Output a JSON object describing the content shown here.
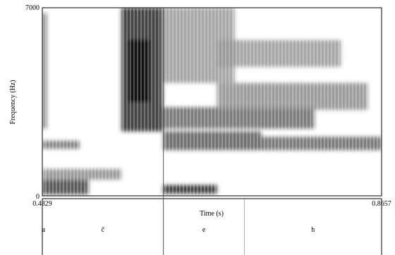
{
  "chart_data": {
    "type": "heatmap",
    "title": "",
    "xlabel": "Time (s)",
    "ylabel": "Frequency (Hz)",
    "x_range": [
      0.4829,
      0.8657
    ],
    "y_range": [
      0,
      7000
    ],
    "x_tick_labels": [
      "0.4829",
      "0.8657"
    ],
    "y_tick_labels": [
      "0",
      "7000"
    ],
    "cursor_time_s": 0.6195,
    "grid": false,
    "colormap": "grayscale (dark = high energy)",
    "energy_regions": [
      {
        "t0": 0.4829,
        "t1": 0.535,
        "f0": 50,
        "f1": 600,
        "level": 0.75
      },
      {
        "t0": 0.4829,
        "t1": 0.572,
        "f0": 600,
        "f1": 1000,
        "level": 0.45
      },
      {
        "t0": 0.4829,
        "t1": 0.525,
        "f0": 1750,
        "f1": 2050,
        "level": 0.55
      },
      {
        "t0": 0.4829,
        "t1": 0.488,
        "f0": 2500,
        "f1": 6800,
        "level": 0.55
      },
      {
        "t0": 0.572,
        "t1": 0.619,
        "f0": 2400,
        "f1": 7000,
        "level": 0.85
      },
      {
        "t0": 0.58,
        "t1": 0.604,
        "f0": 3500,
        "f1": 5800,
        "level": 0.95
      },
      {
        "t0": 0.619,
        "t1": 0.68,
        "f0": 80,
        "f1": 400,
        "level": 0.85
      },
      {
        "t0": 0.619,
        "t1": 0.73,
        "f0": 1700,
        "f1": 2400,
        "level": 0.65
      },
      {
        "t0": 0.619,
        "t1": 0.79,
        "f0": 2500,
        "f1": 3300,
        "level": 0.6
      },
      {
        "t0": 0.619,
        "t1": 0.7,
        "f0": 4200,
        "f1": 7000,
        "level": 0.4
      },
      {
        "t0": 0.68,
        "t1": 0.85,
        "f0": 3200,
        "f1": 4200,
        "level": 0.45
      },
      {
        "t0": 0.68,
        "t1": 0.82,
        "f0": 4800,
        "f1": 5800,
        "level": 0.4
      },
      {
        "t0": 0.73,
        "t1": 0.8657,
        "f0": 1700,
        "f1": 2200,
        "level": 0.6
      }
    ]
  },
  "segments": [
    {
      "label": "a",
      "t0": 0.4829,
      "t1": 0.4829
    },
    {
      "label": "č",
      "t0": 0.4829,
      "t1": 0.6195
    },
    {
      "label": "e",
      "t0": 0.6195,
      "t1": 0.711
    },
    {
      "label": "h",
      "t0": 0.711,
      "t1": 0.8657
    }
  ]
}
